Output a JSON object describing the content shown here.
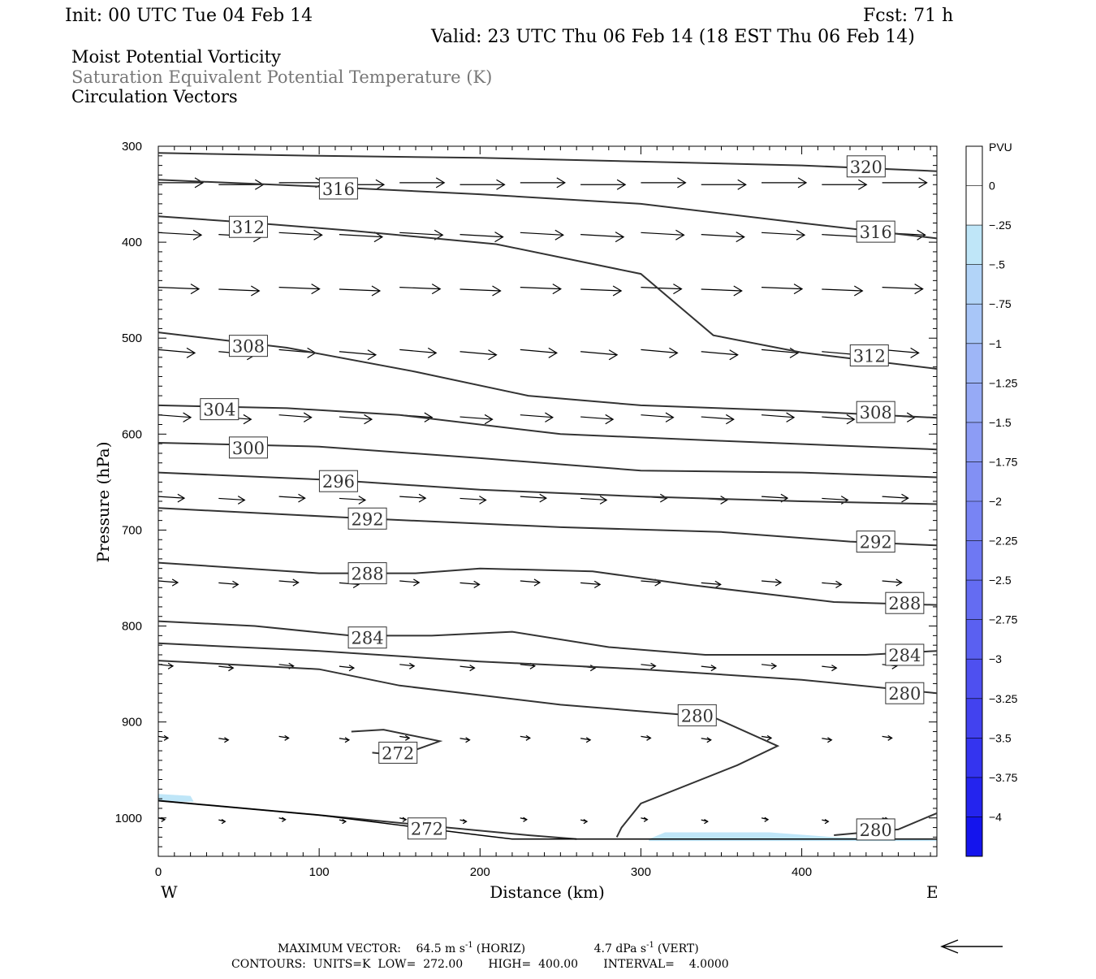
{
  "header": {
    "init": "Init: 00 UTC Tue 04 Feb 14",
    "fcst": "Fcst:   71 h",
    "valid": "Valid: 23 UTC Thu 06 Feb 14 (18 EST Thu 06 Feb 14)"
  },
  "titles": [
    {
      "text": "Moist Potential Vorticity",
      "color": "#000000"
    },
    {
      "text": "Saturation Equivalent Potential Temperature (K)",
      "color": "#777777"
    },
    {
      "text": "Circulation Vectors",
      "color": "#000000"
    }
  ],
  "footer": {
    "max_vector_label": "MAXIMUM VECTOR:",
    "horiz_value": "64.5 m s",
    "horiz_exp": "-1",
    "horiz_tag": "(HORIZ)",
    "vert_value": "4.7 dPa s",
    "vert_exp": "-1",
    "vert_tag": "(VERT)",
    "contours": "CONTOURS:  UNITS=K  LOW=  272.00       HIGH=  400.00       INTERVAL=    4.0000"
  },
  "chart_data": {
    "type": "contour",
    "xlabel": "Distance (km)",
    "ylabel": "Pressure (hPa)",
    "xlim": [
      0,
      484
    ],
    "ylim": [
      1040,
      300
    ],
    "x_ticks": [
      0,
      100,
      200,
      300,
      400
    ],
    "y_ticks": [
      300,
      400,
      500,
      600,
      700,
      800,
      900,
      1000
    ],
    "x_end_labels": {
      "left": "W",
      "right": "E"
    },
    "colorbar": {
      "unit": "PVU",
      "labels": [
        "0",
        "-.25",
        "-.5",
        "-.75",
        "-1",
        "-1.25",
        "-1.5",
        "-1.75",
        "-2",
        "-2.25",
        "-2.5",
        "-2.75",
        "-3",
        "-3.25",
        "-3.5",
        "-3.75",
        "-4"
      ],
      "colors": [
        "#ffffff",
        "#ffffff",
        "#bfe6f8",
        "#b2d4f8",
        "#a8c6f8",
        "#9eb6f7",
        "#96aaf6",
        "#8c9cf5",
        "#8290f4",
        "#7884f4",
        "#6e78f3",
        "#646cf2",
        "#5a60f1",
        "#4e50f0",
        "#4242ef",
        "#3434ef",
        "#2424ee",
        "#1414ed"
      ]
    },
    "contours": [
      {
        "label": "320",
        "points": [
          [
            0,
            307
          ],
          [
            100,
            310
          ],
          [
            200,
            312
          ],
          [
            300,
            316
          ],
          [
            400,
            320
          ],
          [
            484,
            326
          ]
        ],
        "label_at": [
          440,
          321
        ]
      },
      {
        "label": "316",
        "points": [
          [
            0,
            335
          ],
          [
            100,
            342
          ],
          [
            200,
            350
          ],
          [
            300,
            360
          ],
          [
            400,
            380
          ],
          [
            484,
            396
          ]
        ],
        "label_at": [
          446,
          389
        ],
        "label2": "316",
        "label2_at": [
          112,
          344
        ]
      },
      {
        "label": "312",
        "points": [
          [
            0,
            373
          ],
          [
            60,
            380
          ],
          [
            120,
            388
          ],
          [
            210,
            402
          ],
          [
            300,
            433
          ],
          [
            345,
            497
          ],
          [
            400,
            515
          ],
          [
            484,
            532
          ]
        ],
        "label_at": [
          442,
          518
        ],
        "label2": "312",
        "label2_at": [
          56,
          384
        ]
      },
      {
        "label": "308",
        "points": [
          [
            0,
            494
          ],
          [
            80,
            510
          ],
          [
            160,
            535
          ],
          [
            230,
            560
          ],
          [
            300,
            570
          ],
          [
            400,
            576
          ],
          [
            484,
            583
          ]
        ],
        "label_at": [
          446,
          577
        ],
        "label2": "308",
        "label2_at": [
          56,
          508
        ]
      },
      {
        "label": "304",
        "points": [
          [
            0,
            570
          ],
          [
            80,
            573
          ],
          [
            150,
            580
          ],
          [
            250,
            600
          ],
          [
            350,
            607
          ],
          [
            484,
            616
          ]
        ],
        "label_at": [
          38,
          574
        ]
      },
      {
        "label": "300",
        "points": [
          [
            0,
            609
          ],
          [
            100,
            613
          ],
          [
            200,
            625
          ],
          [
            300,
            638
          ],
          [
            400,
            640
          ],
          [
            484,
            645
          ]
        ],
        "label_at": [
          56,
          614
        ]
      },
      {
        "label": "296",
        "points": [
          [
            0,
            640
          ],
          [
            110,
            648
          ],
          [
            200,
            658
          ],
          [
            300,
            665
          ],
          [
            400,
            670
          ],
          [
            484,
            673
          ]
        ],
        "label_at": [
          112,
          649
        ]
      },
      {
        "label": "292",
        "points": [
          [
            0,
            677
          ],
          [
            130,
            688
          ],
          [
            250,
            697
          ],
          [
            350,
            702
          ],
          [
            430,
            712
          ],
          [
            484,
            716
          ]
        ],
        "label_at": [
          446,
          712
        ],
        "label2": "292",
        "label2_at": [
          130,
          688
        ]
      },
      {
        "label": "288",
        "points": [
          [
            0,
            734
          ],
          [
            100,
            745
          ],
          [
            160,
            745
          ],
          [
            200,
            740
          ],
          [
            270,
            743
          ],
          [
            330,
            757
          ],
          [
            420,
            775
          ],
          [
            484,
            778
          ]
        ],
        "label_at": [
          464,
          776
        ],
        "label2": "288",
        "label2_at": [
          130,
          745
        ]
      },
      {
        "label": "284",
        "points": [
          [
            0,
            795
          ],
          [
            60,
            800
          ],
          [
            120,
            810
          ],
          [
            170,
            810
          ],
          [
            220,
            806
          ],
          [
            280,
            822
          ],
          [
            340,
            830
          ],
          [
            440,
            830
          ],
          [
            484,
            826
          ]
        ],
        "label_at": [
          464,
          830
        ],
        "label2": "284",
        "label2_at": [
          130,
          812
        ]
      },
      {
        "label": "280",
        "points": [
          [
            0,
            818
          ],
          [
            100,
            826
          ],
          [
            200,
            837
          ],
          [
            300,
            845
          ],
          [
            400,
            856
          ],
          [
            484,
            870
          ]
        ],
        "label_at": [
          464,
          870
        ]
      },
      {
        "label": "280",
        "points": [
          [
            0,
            836
          ],
          [
            100,
            845
          ],
          [
            150,
            862
          ],
          [
            250,
            882
          ],
          [
            345,
            895
          ],
          [
            385,
            925
          ],
          [
            360,
            945
          ],
          [
            300,
            985
          ],
          [
            288,
            1010
          ],
          [
            285,
            1020
          ]
        ],
        "label_at": [
          335,
          893
        ]
      },
      {
        "label": "272",
        "points": [
          [
            120,
            910
          ],
          [
            140,
            908
          ],
          [
            175,
            920
          ],
          [
            150,
            935
          ],
          [
            133,
            932
          ]
        ],
        "label_at": [
          149,
          932
        ]
      },
      {
        "label": "272",
        "points": [
          [
            0,
            982
          ],
          [
            100,
            997
          ],
          [
            180,
            1010
          ],
          [
            230,
            1018
          ],
          [
            260,
            1022
          ]
        ],
        "label_at": [
          167,
          1011
        ]
      },
      {
        "label": "280",
        "points": [
          [
            420,
            1018
          ],
          [
            460,
            1012
          ],
          [
            484,
            995
          ]
        ],
        "label_at": [
          446,
          1012
        ]
      }
    ],
    "shaded_regions": [
      {
        "value": "-.25",
        "points": [
          [
            0,
            975
          ],
          [
            20,
            977
          ],
          [
            22,
            983
          ],
          [
            0,
            983
          ]
        ]
      },
      {
        "value": "-.25",
        "points": [
          [
            305,
            1022
          ],
          [
            315,
            1015
          ],
          [
            380,
            1015
          ],
          [
            420,
            1020
          ],
          [
            484,
            1023
          ],
          [
            484,
            1024
          ],
          [
            305,
            1024
          ]
        ]
      }
    ],
    "ground_line": {
      "points": [
        [
          0,
          982
        ],
        [
          100,
          997
        ],
        [
          200,
          1018
        ],
        [
          220,
          1022
        ],
        [
          484,
          1022
        ]
      ]
    },
    "vector_rows": [
      {
        "p": 338,
        "u": 55,
        "w": 0,
        "x0": 0,
        "n": 13
      },
      {
        "p": 390,
        "u": 53,
        "w": 3,
        "x0": 0,
        "n": 13
      },
      {
        "p": 447,
        "u": 50,
        "w": 2,
        "x0": 0,
        "n": 13
      },
      {
        "p": 512,
        "u": 45,
        "w": 4,
        "x0": 0,
        "n": 13
      },
      {
        "p": 580,
        "u": 40,
        "w": 3,
        "x0": 0,
        "n": 13
      },
      {
        "p": 665,
        "u": 32,
        "w": 2,
        "x0": 0,
        "n": 13
      },
      {
        "p": 753,
        "u": 24,
        "w": 2,
        "x0": 0,
        "n": 13
      },
      {
        "p": 840,
        "u": 18,
        "w": 2,
        "x0": 0,
        "n": 13
      },
      {
        "p": 915,
        "u": 12,
        "w": 2,
        "x0": 0,
        "n": 13
      },
      {
        "p": 1000,
        "u": 8,
        "w": 2,
        "x0": 0,
        "n": 13
      }
    ]
  }
}
